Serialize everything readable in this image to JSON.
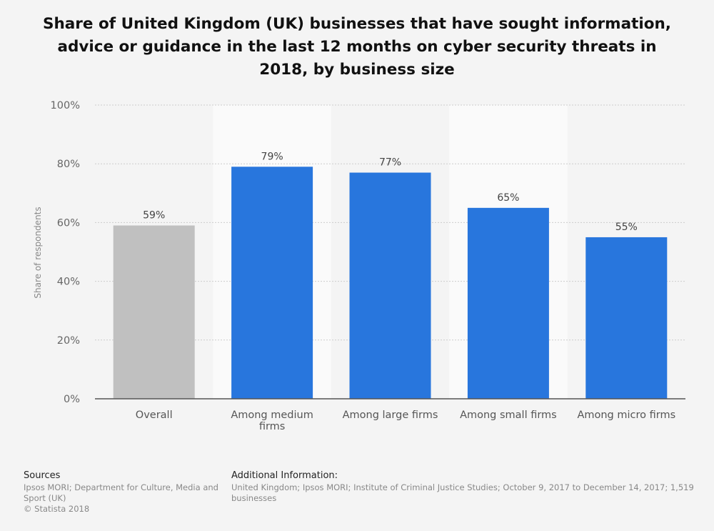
{
  "chart_data": {
    "type": "bar",
    "title": "Share of United Kingdom (UK) businesses that have sought information, advice or guidance in the last 12 months on cyber security threats in 2018, by business size",
    "ylabel": "Share of respondents",
    "xlabel": "",
    "ylim": [
      0,
      100
    ],
    "yticks": [
      "0%",
      "20%",
      "40%",
      "60%",
      "80%",
      "100%"
    ],
    "categories": [
      [
        "Overall"
      ],
      [
        "Among medium",
        "firms"
      ],
      [
        "Among large firms"
      ],
      [
        "Among small firms"
      ],
      [
        "Among micro firms"
      ]
    ],
    "values": [
      59,
      79,
      77,
      65,
      55
    ],
    "value_labels": [
      "59%",
      "79%",
      "77%",
      "65%",
      "55%"
    ],
    "bar_colors": [
      "#c0c0c0",
      "#2876dd",
      "#2876dd",
      "#2876dd",
      "#2876dd"
    ],
    "grid": true,
    "legend": "none"
  },
  "footer": {
    "sources_heading": "Sources",
    "sources_text": "Ipsos MORI; Department for Culture, Media and Sport (UK)",
    "copyright": "© Statista 2018",
    "additional_heading": "Additional Information:",
    "additional_line1": "United Kingdom; Ipsos MORI; Institute of Criminal Justice Studies; October 9, 2017 to December 14, 2017; 1,519",
    "additional_line2": "businesses"
  },
  "colors": {
    "background": "#f4f4f4",
    "band": "#fafafa",
    "grid": "#cccccc",
    "axis": "#555555"
  }
}
